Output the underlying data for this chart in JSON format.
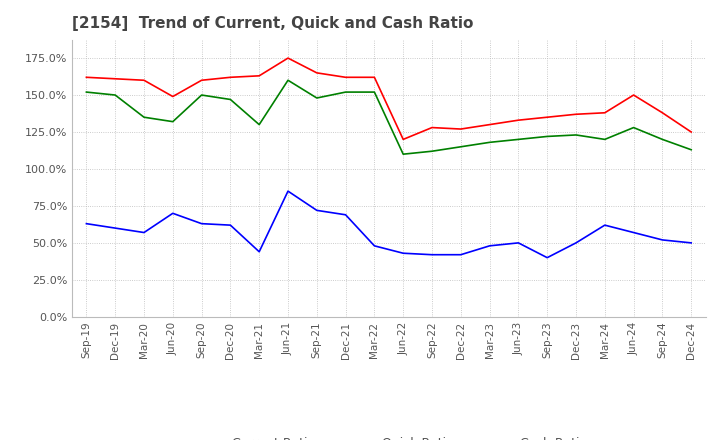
{
  "title": "[2154]  Trend of Current, Quick and Cash Ratio",
  "x_labels": [
    "Sep-19",
    "Dec-19",
    "Mar-20",
    "Jun-20",
    "Sep-20",
    "Dec-20",
    "Mar-21",
    "Jun-21",
    "Sep-21",
    "Dec-21",
    "Mar-22",
    "Jun-22",
    "Sep-22",
    "Dec-22",
    "Mar-23",
    "Jun-23",
    "Sep-23",
    "Dec-23",
    "Mar-24",
    "Jun-24",
    "Sep-24",
    "Dec-24"
  ],
  "current_ratio": [
    1.62,
    1.61,
    1.6,
    1.49,
    1.6,
    1.62,
    1.63,
    1.75,
    1.65,
    1.62,
    1.62,
    1.2,
    1.28,
    1.27,
    1.3,
    1.33,
    1.35,
    1.37,
    1.38,
    1.5,
    1.38,
    1.25
  ],
  "quick_ratio": [
    1.52,
    1.5,
    1.35,
    1.32,
    1.5,
    1.47,
    1.3,
    1.6,
    1.48,
    1.52,
    1.52,
    1.1,
    1.12,
    1.15,
    1.18,
    1.2,
    1.22,
    1.23,
    1.2,
    1.28,
    1.2,
    1.13
  ],
  "cash_ratio": [
    0.63,
    0.6,
    0.57,
    0.7,
    0.63,
    0.62,
    0.44,
    0.85,
    0.72,
    0.69,
    0.48,
    0.43,
    0.42,
    0.42,
    0.48,
    0.5,
    0.4,
    0.5,
    0.62,
    0.57,
    0.52,
    0.5
  ],
  "current_color": "#ff0000",
  "quick_color": "#008000",
  "cash_color": "#0000ff",
  "ylim": [
    0.0,
    1.875
  ],
  "yticks": [
    0.0,
    0.25,
    0.5,
    0.75,
    1.0,
    1.25,
    1.5,
    1.75
  ],
  "background_color": "#ffffff",
  "grid_color": "#bbbbbb"
}
